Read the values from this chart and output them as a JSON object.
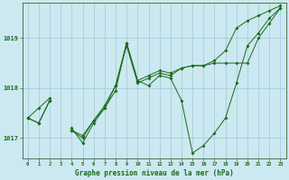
{
  "background_color": "#cce8f0",
  "grid_color": "#99ccd9",
  "line_color": "#1a6b1a",
  "spine_color": "#336633",
  "title": "Graphe pression niveau de la mer (hPa)",
  "xlabel_ticks": [
    0,
    1,
    2,
    3,
    4,
    5,
    6,
    7,
    8,
    9,
    10,
    11,
    12,
    13,
    14,
    15,
    16,
    17,
    18,
    19,
    20,
    21,
    22,
    23
  ],
  "ylim": [
    1016.6,
    1019.7
  ],
  "yticks": [
    1017,
    1018,
    1019
  ],
  "series": [
    [
      1017.4,
      1017.3,
      1017.75,
      null,
      1017.2,
      1016.9,
      1017.3,
      1017.6,
      1017.95,
      1018.9,
      1018.15,
      1018.05,
      1018.25,
      1018.2,
      1017.75,
      1016.7,
      1016.85,
      1017.1,
      1017.4,
      1018.1,
      1018.85,
      1019.1,
      1019.4,
      1019.6
    ],
    [
      1017.4,
      1017.3,
      1017.75,
      null,
      1017.15,
      1017.0,
      1017.35,
      1017.6,
      1018.05,
      1018.9,
      1018.15,
      1018.25,
      1018.35,
      1018.3,
      1018.4,
      1018.45,
      1018.45,
      1018.5,
      1018.5,
      1018.5,
      1018.5,
      1019.0,
      1019.3,
      1019.6
    ],
    [
      1017.4,
      1017.6,
      1017.8,
      null,
      1017.15,
      1017.05,
      1017.35,
      1017.65,
      1018.05,
      1018.85,
      1018.1,
      1018.2,
      1018.3,
      1018.25,
      1018.4,
      1018.45,
      1018.45,
      1018.55,
      1018.75,
      1019.2,
      1019.35,
      1019.45,
      1019.55,
      1019.65
    ]
  ],
  "figsize": [
    3.2,
    2.0
  ],
  "dpi": 100
}
